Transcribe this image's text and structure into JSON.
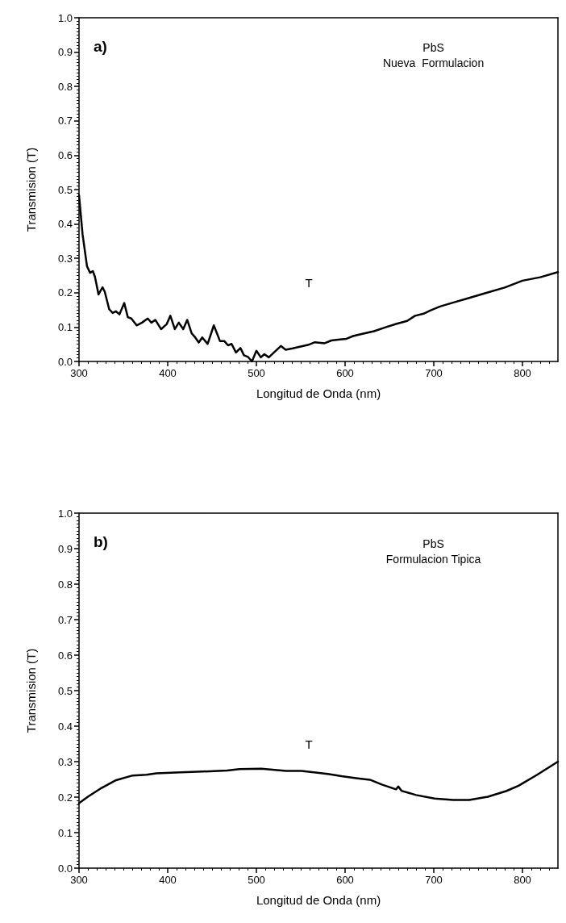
{
  "chart_data": [
    {
      "type": "line",
      "xlabel": "Longitud de Onda (nm)",
      "ylabel": "Transmision (T)",
      "annotations": [
        "a)",
        "PbS",
        "Nueva  Formulacion",
        "T"
      ],
      "xlim": [
        300,
        840
      ],
      "xticks": [
        300,
        400,
        500,
        600,
        700,
        800
      ],
      "ylim": [
        0,
        1
      ],
      "yticks": [
        {
          "value": 0,
          "label": "0.0"
        },
        {
          "value": 0.1,
          "label": "0.1"
        },
        {
          "value": 0.2,
          "label": "0.2"
        },
        {
          "value": 0.3,
          "label": "0.3"
        },
        {
          "value": 0.4,
          "label": "0.4"
        },
        {
          "value": 0.5,
          "label": "0.5"
        },
        {
          "value": 0.6,
          "label": "0.6"
        },
        {
          "value": 0.7,
          "label": "0.7"
        },
        {
          "value": 0.8,
          "label": "0.8"
        },
        {
          "value": 0.9,
          "label": "0.9"
        },
        {
          "value": 1,
          "label": "1.0"
        }
      ],
      "grid": false,
      "marker": "none",
      "line_style": "solid",
      "series": [
        {
          "color": "#000000",
          "x": [
            300,
            304,
            309,
            312.5,
            315.6,
            318,
            322,
            326.5,
            329,
            334,
            338,
            341.5,
            345.6,
            351,
            355,
            359,
            365,
            371,
            377.5,
            381.6,
            386,
            392.5,
            399,
            403,
            408,
            412.5,
            417.5,
            422,
            427,
            431,
            435,
            439,
            445,
            452,
            459,
            464,
            468,
            472,
            477,
            482,
            486,
            490.6,
            495,
            500,
            505,
            509,
            514,
            521,
            527.6,
            533,
            541,
            549,
            558,
            566,
            577,
            584.5,
            594,
            601.5,
            609,
            618.6,
            632.6,
            645,
            657.5,
            670,
            679,
            688.5,
            696,
            707,
            720,
            740,
            760,
            780,
            800,
            820,
            840
          ],
          "values": [
            0.484,
            0.37,
            0.277,
            0.258,
            0.263,
            0.246,
            0.195,
            0.216,
            0.203,
            0.152,
            0.141,
            0.146,
            0.137,
            0.17,
            0.129,
            0.125,
            0.105,
            0.113,
            0.125,
            0.113,
            0.121,
            0.094,
            0.109,
            0.133,
            0.094,
            0.113,
            0.094,
            0.121,
            0.082,
            0.07,
            0.055,
            0.07,
            0.051,
            0.105,
            0.059,
            0.059,
            0.047,
            0.051,
            0.026,
            0.039,
            0.018,
            0.013,
            0.0,
            0.031,
            0.012,
            0.021,
            0.012,
            0.029,
            0.045,
            0.034,
            0.038,
            0.043,
            0.048,
            0.056,
            0.053,
            0.061,
            0.064,
            0.066,
            0.074,
            0.08,
            0.088,
            0.099,
            0.109,
            0.118,
            0.133,
            0.139,
            0.148,
            0.16,
            0.17,
            0.185,
            0.2,
            0.215,
            0.235,
            0.245,
            0.26
          ]
        }
      ]
    },
    {
      "type": "line",
      "xlabel": "Longitud de Onda (nm)",
      "ylabel": "Transmision (T)",
      "annotations": [
        "b)",
        "PbS",
        "Formulacion Tipica",
        "T"
      ],
      "xlim": [
        300,
        840
      ],
      "xticks": [
        300,
        400,
        500,
        600,
        700,
        800
      ],
      "ylim": [
        0,
        1
      ],
      "yticks": [
        {
          "value": 0,
          "label": "0.0"
        },
        {
          "value": 0.1,
          "label": "0.1"
        },
        {
          "value": 0.2,
          "label": "0.2"
        },
        {
          "value": 0.3,
          "label": "0.3"
        },
        {
          "value": 0.4,
          "label": "0.4"
        },
        {
          "value": 0.5,
          "label": "0.5"
        },
        {
          "value": 0.6,
          "label": "0.6"
        },
        {
          "value": 0.7,
          "label": "0.7"
        },
        {
          "value": 0.8,
          "label": "0.8"
        },
        {
          "value": 0.9,
          "label": "0.9"
        },
        {
          "value": 1,
          "label": "1.0"
        }
      ],
      "grid": false,
      "marker": "none",
      "line_style": "solid",
      "series": [
        {
          "color": "#000000",
          "x": [
            300,
            310,
            325.5,
            341,
            360.5,
            376,
            387,
            414.6,
            439,
            467,
            481,
            505.5,
            533.5,
            551,
            565,
            582,
            596,
            614,
            628,
            642,
            657.6,
            660,
            663.5,
            680,
            701,
            722,
            740,
            761,
            781.6,
            795.6,
            816.6,
            840
          ],
          "values": [
            0.183,
            0.201,
            0.226,
            0.247,
            0.261,
            0.263,
            0.267,
            0.27,
            0.272,
            0.275,
            0.279,
            0.28,
            0.274,
            0.274,
            0.27,
            0.265,
            0.259,
            0.253,
            0.249,
            0.235,
            0.222,
            0.23,
            0.218,
            0.206,
            0.196,
            0.192,
            0.192,
            0.201,
            0.217,
            0.232,
            0.263,
            0.3
          ]
        }
      ]
    }
  ]
}
